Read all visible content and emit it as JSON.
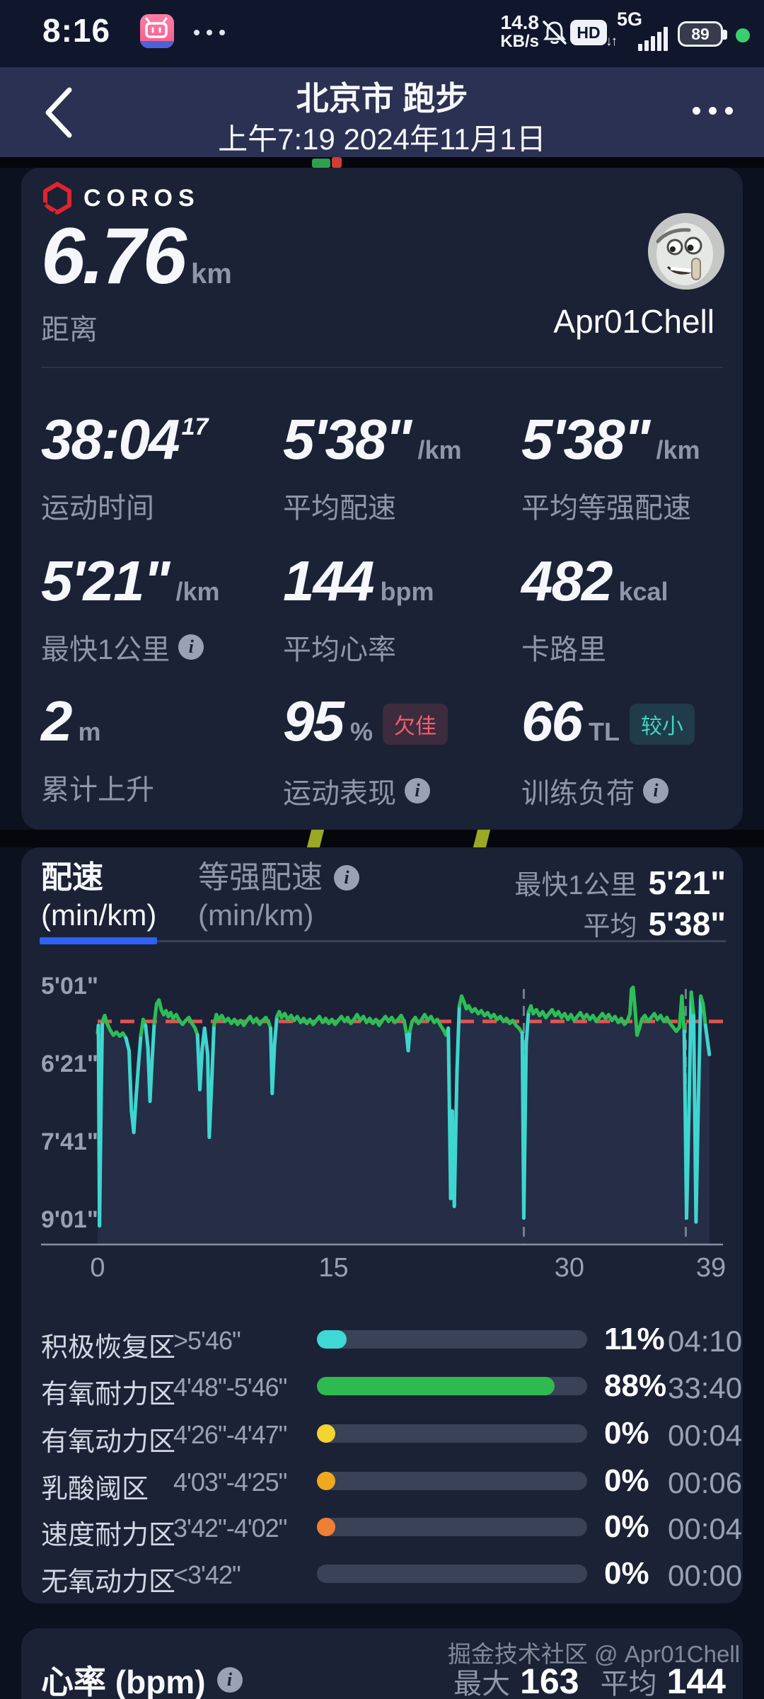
{
  "status_bar": {
    "time": "8:16",
    "net_speed_value": "14.8",
    "net_speed_unit": "KB/s",
    "hd_label": "HD",
    "network": "5G",
    "battery_level": "89"
  },
  "header": {
    "title": "北京市 跑步",
    "subtitle": "上午7:19 2024年11月1日"
  },
  "summary_card": {
    "brand": "COROS",
    "distance_value": "6.76",
    "distance_unit": "km",
    "distance_label": "距离",
    "username": "Apr01Chell",
    "stats": [
      {
        "value": "38:04",
        "sup": "17",
        "unit": "",
        "label": "运动时间",
        "info": false
      },
      {
        "value": "5'38\"",
        "unit": "/km",
        "label": "平均配速",
        "info": false
      },
      {
        "value": "5'38\"",
        "unit": "/km",
        "label": "平均等强配速",
        "info": false
      },
      {
        "value": "5'21\"",
        "unit": "/km",
        "label": "最快1公里",
        "info": true
      },
      {
        "value": "144",
        "unit": "bpm",
        "label": "平均心率",
        "info": false
      },
      {
        "value": "482",
        "unit": "kcal",
        "label": "卡路里",
        "info": false
      },
      {
        "value": "2",
        "unit": "m",
        "label": "累计上升",
        "info": false
      },
      {
        "value": "95",
        "unit": "%",
        "label": "运动表现",
        "info": true,
        "badge": "欠佳",
        "badge_color": "#f2606a",
        "badge_bg": "rgba(242,96,106,0.16)"
      },
      {
        "value": "66",
        "unit": "TL",
        "label": "训练负荷",
        "info": true,
        "badge": "较小",
        "badge_color": "#3fd6c2",
        "badge_bg": "rgba(63,214,194,0.14)"
      }
    ]
  },
  "pace_card": {
    "tab_active_title": "配速",
    "tab_active_sub": "(min/km)",
    "tab_inactive_title": "等强配速",
    "tab_inactive_sub": "(min/km)",
    "fastest_label": "最快1公里",
    "fastest_value": "5'21\"",
    "avg_label": "平均",
    "avg_value": "5'38\"",
    "accent_blue": "#2e61f4",
    "chart_data": {
      "type": "line",
      "title": "配速 (min/km)",
      "x_unit": "min",
      "x_range": [
        0,
        39
      ],
      "x_ticks": [
        0,
        15,
        30,
        39
      ],
      "y_tick_labels": [
        "5'01\"",
        "6'21\"",
        "7'41\"",
        "9'01\""
      ],
      "y_tick_seconds": [
        301,
        381,
        461,
        541
      ],
      "y_axis_note": "pace seconds per km, inverted (faster = higher)",
      "average_pace_seconds": 338,
      "slow_threshold_seconds": 358,
      "fast_color": "#2cbe55",
      "slow_color": "#3fd6cf",
      "avg_line_color": "#e25550",
      "marker_color": "#7e879c",
      "lap_markers_min": [
        27.1,
        37.4
      ],
      "legend": "green = running pace, cyan = slow/pause dips, red dashed = average 5'38\"",
      "pace_series": [
        [
          0.0,
          350
        ],
        [
          0.05,
          342
        ],
        [
          0.12,
          548
        ],
        [
          0.22,
          420
        ],
        [
          0.3,
          338
        ],
        [
          0.45,
          332
        ],
        [
          0.6,
          340
        ],
        [
          0.8,
          347
        ],
        [
          1.0,
          352
        ],
        [
          1.2,
          349
        ],
        [
          1.4,
          353
        ],
        [
          1.6,
          350
        ],
        [
          1.8,
          355
        ],
        [
          2.0,
          368
        ],
        [
          2.15,
          430
        ],
        [
          2.3,
          452
        ],
        [
          2.45,
          415
        ],
        [
          2.6,
          382
        ],
        [
          2.75,
          352
        ],
        [
          2.9,
          336
        ],
        [
          3.05,
          342
        ],
        [
          3.2,
          365
        ],
        [
          3.33,
          420
        ],
        [
          3.45,
          382
        ],
        [
          3.6,
          340
        ],
        [
          3.75,
          320
        ],
        [
          3.9,
          316
        ],
        [
          4.05,
          326
        ],
        [
          4.2,
          331
        ],
        [
          4.35,
          327
        ],
        [
          4.5,
          333
        ],
        [
          4.65,
          329
        ],
        [
          4.8,
          335
        ],
        [
          5.0,
          331
        ],
        [
          5.2,
          337
        ],
        [
          5.4,
          341
        ],
        [
          5.6,
          337
        ],
        [
          5.8,
          334
        ],
        [
          6.0,
          340
        ],
        [
          6.2,
          345
        ],
        [
          6.35,
          352
        ],
        [
          6.5,
          408
        ],
        [
          6.65,
          366
        ],
        [
          6.8,
          345
        ],
        [
          7.0,
          372
        ],
        [
          7.1,
          457
        ],
        [
          7.25,
          402
        ],
        [
          7.4,
          342
        ],
        [
          7.55,
          331
        ],
        [
          7.7,
          336
        ],
        [
          7.9,
          332
        ],
        [
          8.1,
          338
        ],
        [
          8.3,
          335
        ],
        [
          8.5,
          340
        ],
        [
          8.7,
          336
        ],
        [
          8.9,
          341
        ],
        [
          9.1,
          337
        ],
        [
          9.3,
          342
        ],
        [
          9.5,
          337
        ],
        [
          9.7,
          333
        ],
        [
          9.9,
          339
        ],
        [
          10.1,
          335
        ],
        [
          10.3,
          341
        ],
        [
          10.5,
          337
        ],
        [
          10.7,
          334
        ],
        [
          10.9,
          340
        ],
        [
          11.0,
          345
        ],
        [
          11.1,
          412
        ],
        [
          11.25,
          362
        ],
        [
          11.4,
          333
        ],
        [
          11.55,
          328
        ],
        [
          11.7,
          334
        ],
        [
          11.9,
          330
        ],
        [
          12.1,
          336
        ],
        [
          12.3,
          332
        ],
        [
          12.5,
          337
        ],
        [
          12.7,
          333
        ],
        [
          12.9,
          339
        ],
        [
          13.1,
          335
        ],
        [
          13.3,
          340
        ],
        [
          13.5,
          336
        ],
        [
          13.7,
          341
        ],
        [
          13.9,
          337
        ],
        [
          14.1,
          333
        ],
        [
          14.3,
          339
        ],
        [
          14.5,
          335
        ],
        [
          14.7,
          340
        ],
        [
          14.9,
          336
        ],
        [
          15.1,
          341
        ],
        [
          15.3,
          337
        ],
        [
          15.5,
          333
        ],
        [
          15.7,
          338
        ],
        [
          15.9,
          334
        ],
        [
          16.1,
          340
        ],
        [
          16.3,
          336
        ],
        [
          16.5,
          331
        ],
        [
          16.7,
          337
        ],
        [
          16.9,
          333
        ],
        [
          17.1,
          339
        ],
        [
          17.3,
          335
        ],
        [
          17.5,
          340
        ],
        [
          17.7,
          336
        ],
        [
          17.9,
          342
        ],
        [
          18.1,
          337
        ],
        [
          18.3,
          333
        ],
        [
          18.5,
          338
        ],
        [
          18.7,
          334
        ],
        [
          18.9,
          339
        ],
        [
          19.1,
          336
        ],
        [
          19.3,
          332
        ],
        [
          19.5,
          338
        ],
        [
          19.65,
          352
        ],
        [
          19.75,
          368
        ],
        [
          19.85,
          348
        ],
        [
          20.0,
          338
        ],
        [
          20.2,
          334
        ],
        [
          20.4,
          340
        ],
        [
          20.6,
          336
        ],
        [
          20.8,
          331
        ],
        [
          21.0,
          337
        ],
        [
          21.2,
          333
        ],
        [
          21.4,
          339
        ],
        [
          21.6,
          336
        ],
        [
          21.8,
          342
        ],
        [
          22.0,
          347
        ],
        [
          22.15,
          352
        ],
        [
          22.3,
          345
        ],
        [
          22.45,
          520
        ],
        [
          22.55,
          430
        ],
        [
          22.68,
          528
        ],
        [
          22.85,
          390
        ],
        [
          23.0,
          322
        ],
        [
          23.15,
          312
        ],
        [
          23.3,
          318
        ],
        [
          23.45,
          325
        ],
        [
          23.6,
          322
        ],
        [
          23.8,
          328
        ],
        [
          24.0,
          325
        ],
        [
          24.2,
          330
        ],
        [
          24.4,
          327
        ],
        [
          24.6,
          332
        ],
        [
          24.8,
          329
        ],
        [
          25.0,
          334
        ],
        [
          25.2,
          331
        ],
        [
          25.4,
          336
        ],
        [
          25.6,
          333
        ],
        [
          25.8,
          338
        ],
        [
          26.0,
          335
        ],
        [
          26.2,
          340
        ],
        [
          26.4,
          337
        ],
        [
          26.6,
          342
        ],
        [
          26.8,
          345
        ],
        [
          27.0,
          350
        ],
        [
          27.1,
          540
        ],
        [
          27.25,
          362
        ],
        [
          27.4,
          328
        ],
        [
          27.55,
          322
        ],
        [
          27.7,
          330
        ],
        [
          27.9,
          326
        ],
        [
          28.1,
          332
        ],
        [
          28.3,
          328
        ],
        [
          28.5,
          334
        ],
        [
          28.7,
          330
        ],
        [
          28.9,
          326
        ],
        [
          29.1,
          332
        ],
        [
          29.3,
          328
        ],
        [
          29.5,
          334
        ],
        [
          29.7,
          330
        ],
        [
          29.9,
          336
        ],
        [
          30.1,
          331
        ],
        [
          30.3,
          337
        ],
        [
          30.5,
          333
        ],
        [
          30.7,
          329
        ],
        [
          30.9,
          335
        ],
        [
          31.1,
          331
        ],
        [
          31.3,
          336
        ],
        [
          31.5,
          332
        ],
        [
          31.7,
          338
        ],
        [
          31.9,
          334
        ],
        [
          32.1,
          330
        ],
        [
          32.3,
          335
        ],
        [
          32.5,
          331
        ],
        [
          32.7,
          337
        ],
        [
          32.9,
          333
        ],
        [
          33.1,
          339
        ],
        [
          33.3,
          335
        ],
        [
          33.5,
          341
        ],
        [
          33.7,
          337
        ],
        [
          33.85,
          330
        ],
        [
          33.95,
          305
        ],
        [
          34.05,
          303
        ],
        [
          34.15,
          320
        ],
        [
          34.3,
          352
        ],
        [
          34.45,
          345
        ],
        [
          34.6,
          336
        ],
        [
          34.8,
          332
        ],
        [
          35.0,
          338
        ],
        [
          35.2,
          334
        ],
        [
          35.4,
          330
        ],
        [
          35.6,
          336
        ],
        [
          35.8,
          332
        ],
        [
          36.0,
          338
        ],
        [
          36.2,
          334
        ],
        [
          36.4,
          340
        ],
        [
          36.6,
          344
        ],
        [
          36.8,
          348
        ],
        [
          37.0,
          344
        ],
        [
          37.15,
          312
        ],
        [
          37.3,
          348
        ],
        [
          37.45,
          540
        ],
        [
          37.6,
          430
        ],
        [
          37.75,
          308
        ],
        [
          37.9,
          332
        ],
        [
          38.05,
          544
        ],
        [
          38.2,
          420
        ],
        [
          38.35,
          312
        ],
        [
          38.5,
          320
        ],
        [
          38.65,
          342
        ],
        [
          38.9,
          372
        ]
      ]
    },
    "zones": [
      {
        "label": "积极恢复区",
        "range": ">5'46\"",
        "color": "#3fd8d4",
        "percent": 11,
        "percent_label": "11%",
        "time": "04:10"
      },
      {
        "label": "有氧耐力区",
        "range": "4'48\"-5'46\"",
        "color": "#2fba50",
        "percent": 88,
        "percent_label": "88%",
        "time": "33:40"
      },
      {
        "label": "有氧动力区",
        "range": "4'26\"-4'47\"",
        "color": "#f3d430",
        "percent": 0,
        "percent_label": "0%",
        "time": "00:04"
      },
      {
        "label": "乳酸阈区",
        "range": "4'03\"-4'25\"",
        "color": "#f0a91f",
        "percent": 0,
        "percent_label": "0%",
        "time": "00:06"
      },
      {
        "label": "速度耐力区",
        "range": "3'42\"-4'02\"",
        "color": "#ef7f35",
        "percent": 0,
        "percent_label": "0%",
        "time": "00:04"
      },
      {
        "label": "无氧动力区",
        "range": "<3'42\"",
        "color": "#e85c5c",
        "percent": 0,
        "percent_label": "0%",
        "time": "00:00",
        "no_dot": true
      }
    ]
  },
  "hr_card": {
    "title": "心率 (bpm)",
    "max_label": "最大",
    "max_value": "163",
    "avg_label": "平均",
    "avg_value": "144",
    "watermark": "掘金技术社区 @ Apr01Chell"
  }
}
